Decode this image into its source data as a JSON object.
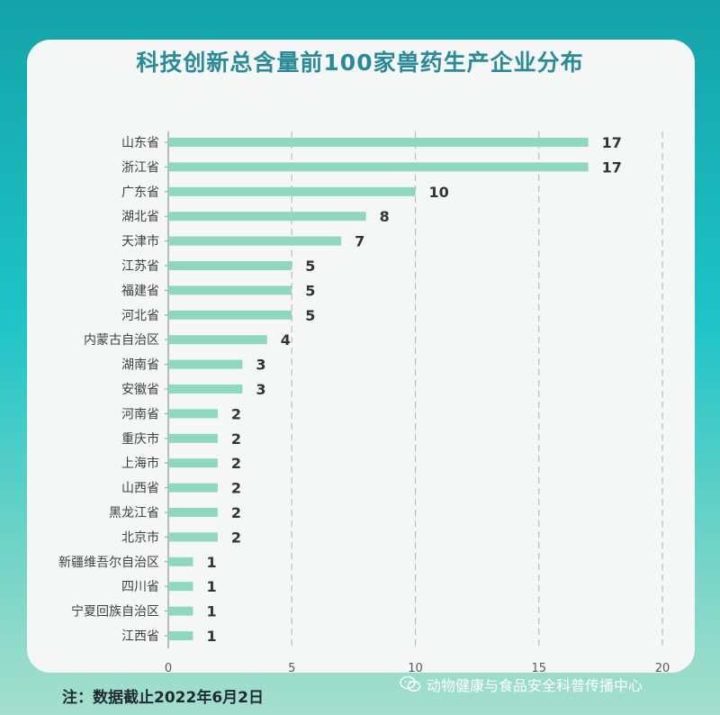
{
  "chart_data": {
    "type": "bar",
    "orientation": "horizontal",
    "title": "科技创新总含量前100家兽药生产企业分布",
    "categories": [
      "山东省",
      "浙江省",
      "广东省",
      "湖北省",
      "天津市",
      "江苏省",
      "福建省",
      "河北省",
      "内蒙古自治区",
      "湖南省",
      "安徽省",
      "河南省",
      "重庆市",
      "上海市",
      "山西省",
      "黑龙江省",
      "北京市",
      "新疆维吾尔自治区",
      "四川省",
      "宁夏回族自治区",
      "江西省"
    ],
    "values": [
      17,
      17,
      10,
      8,
      7,
      5,
      5,
      5,
      4,
      3,
      3,
      2,
      2,
      2,
      2,
      2,
      2,
      1,
      1,
      1,
      1
    ],
    "xlim": [
      0,
      20
    ],
    "xticks": [
      0,
      5,
      10,
      15,
      20
    ],
    "grid": "vertical dashed",
    "bar_color": "#8ed8c0",
    "data_labels": true
  },
  "footnote": "注：数据截止2022年6月2日",
  "watermark": {
    "text": "动物健康与食品安全科普传播中心",
    "icon": "wechat-icon"
  }
}
